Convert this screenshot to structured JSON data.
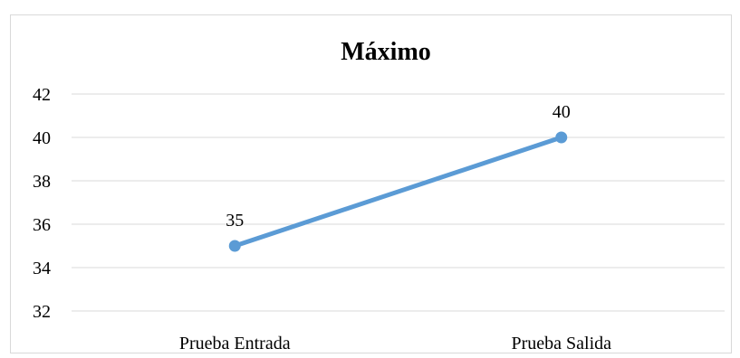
{
  "chart_data": {
    "type": "line",
    "title": "Máximo",
    "categories": [
      "Prueba Entrada",
      "Prueba Salida"
    ],
    "series": [
      {
        "values": [
          35,
          40
        ],
        "color": "#5b9bd5"
      }
    ],
    "data_labels": [
      "35",
      "40"
    ],
    "ylim": [
      32,
      42
    ],
    "yticks": [
      "32",
      "34",
      "36",
      "38",
      "40",
      "42"
    ],
    "ytick_values": [
      32,
      34,
      36,
      38,
      40,
      42
    ],
    "grid": true,
    "legend": "none",
    "xlabel": "",
    "ylabel": ""
  }
}
